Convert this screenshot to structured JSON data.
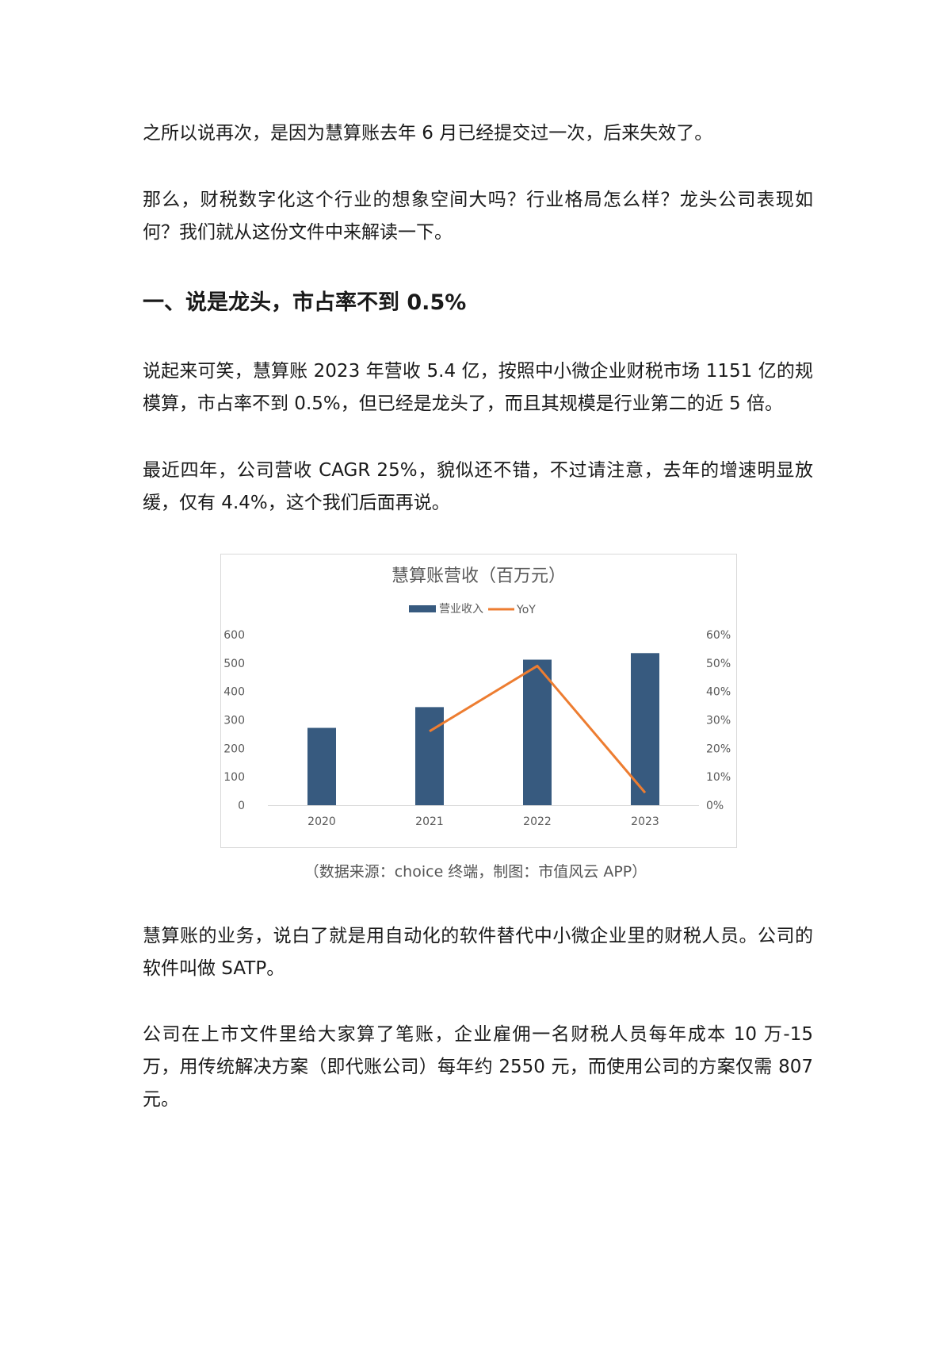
{
  "paragraphs": [
    "之所以说再次，是因为慧算账去年 6 月已经提交过一次，后来失效了。",
    "那么，财税数字化这个行业的想象空间大吗？行业格局怎么样？龙头公司表现如何？我们就从这份文件中来解读一下。",
    "说起来可笑，慧算账 2023 年营收 5.4 亿，按照中小微企业财税市场 1151 亿的规模算，市占率不到 0.5%，但已经是龙头了，而且其规模是行业第二的近 5 倍。",
    "最近四年，公司营收 CAGR 25%，貌似还不错，不过请注意，去年的增速明显放缓，仅有 4.4%，这个我们后面再说。",
    "慧算账的业务，说白了就是用自动化的软件替代中小微企业里的财税人员。公司的软件叫做 SATP。",
    "公司在上市文件里给大家算了笔账，企业雇佣一名财税人员每年成本 10 万-15 万，用传统解决方案（即代账公司）每年约 2550 元，而使用公司的方案仅需 807 元。"
  ],
  "heading": "一、说是龙头，市占率不到 0.5%",
  "caption": "（数据来源：choice 终端，制图：市值风云 APP）",
  "chart_data": {
    "type": "bar",
    "title": "慧算账营收（百万元）",
    "categories": [
      "2020",
      "2021",
      "2022",
      "2023"
    ],
    "series": [
      {
        "name": "营业收入",
        "type": "bar",
        "axis": "left",
        "color": "#375a7f",
        "values": [
          272,
          345,
          512,
          535
        ]
      },
      {
        "name": "YoY",
        "type": "line",
        "axis": "right",
        "color": "#ed7d31",
        "values": [
          null,
          26,
          49,
          4.4
        ]
      }
    ],
    "y_left": {
      "ylim": [
        0,
        600
      ],
      "ticks": [
        "0",
        "100",
        "200",
        "300",
        "400",
        "500",
        "600"
      ]
    },
    "y_right": {
      "ylim": [
        0,
        60
      ],
      "ticks": [
        "0%",
        "10%",
        "20%",
        "30%",
        "40%",
        "50%",
        "60%"
      ]
    },
    "legend": "top",
    "grid": false
  }
}
